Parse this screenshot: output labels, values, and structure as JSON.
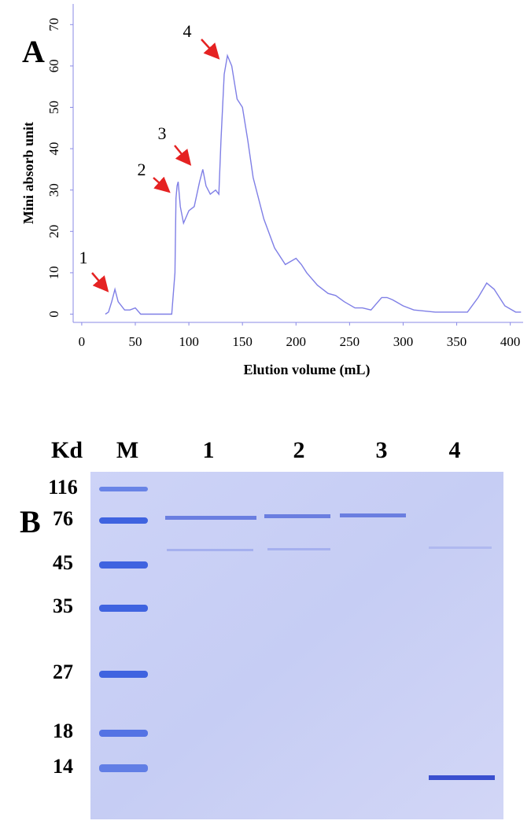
{
  "chart_data": {
    "type": "line",
    "panel_label": "A",
    "ylabel": "Mini absorb unit",
    "xlabel": "Elution volume (mL)",
    "x": [
      0,
      22,
      25,
      28,
      31,
      34,
      40,
      45,
      50,
      55,
      60,
      84,
      87,
      88,
      89,
      90,
      92,
      95,
      100,
      105,
      110,
      113,
      116,
      120,
      125,
      128,
      130,
      133,
      136,
      140,
      145,
      150,
      155,
      160,
      170,
      180,
      190,
      200,
      205,
      210,
      220,
      230,
      237,
      245,
      255,
      262,
      270,
      280,
      285,
      290,
      300,
      310,
      330,
      360,
      370,
      378,
      385,
      395,
      405,
      410
    ],
    "series": [
      {
        "color": "#7f7fe6",
        "values": [
          null,
          0,
          0.5,
          3,
          6,
          3,
          1,
          1,
          1.5,
          0,
          0,
          0,
          10,
          28,
          31,
          32,
          26,
          22,
          25,
          26,
          32,
          35,
          31,
          29,
          30,
          29,
          42,
          58,
          62.5,
          60,
          52,
          50,
          42,
          33,
          23,
          16,
          12,
          13.5,
          12,
          10,
          7,
          5,
          4.5,
          3,
          1.5,
          1.5,
          1,
          4,
          4,
          3.5,
          2,
          1,
          0.5,
          0.5,
          4,
          7.5,
          6,
          2,
          0.5,
          0.5
        ]
      }
    ],
    "annotations": [
      "1",
      "2",
      "3",
      "4"
    ],
    "xlim": [
      -8,
      412
    ],
    "ylim": [
      -2,
      75
    ],
    "xticks": [
      0,
      50,
      100,
      150,
      200,
      250,
      300,
      350,
      400
    ],
    "yticks": [
      0,
      10,
      20,
      30,
      40,
      50,
      60,
      70
    ]
  },
  "gel": {
    "panel_label": "B",
    "header": [
      "Kd",
      "M",
      "1",
      "2",
      "3",
      "4"
    ],
    "markers": [
      "116",
      "76",
      "45",
      "35",
      "27",
      "18",
      "14"
    ]
  }
}
